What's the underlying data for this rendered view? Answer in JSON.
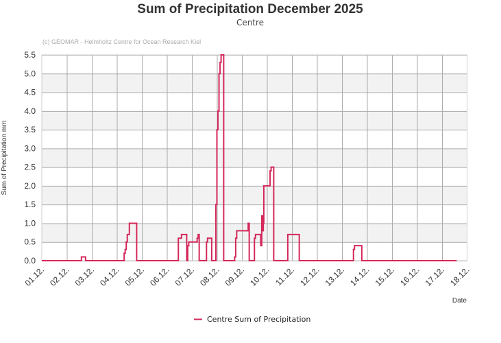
{
  "chart_data": {
    "type": "line",
    "step": true,
    "title": "Sum of Precipitation December 2025",
    "subtitle": "Centre",
    "credit": "(c) GEOMAR - Helmholtz Centre for Ocean Research Kiel",
    "xlabel": "Date",
    "ylabel": "Sum of Precipitation mm",
    "ylim": [
      0,
      5.5
    ],
    "yticks": [
      "0.0",
      "0.5",
      "1.0",
      "1.5",
      "2.0",
      "2.5",
      "3.0",
      "3.5",
      "4.0",
      "4.5",
      "5.0",
      "5.5"
    ],
    "xlim": [
      "2025-12-01 00:00",
      "2025-12-18 00:00"
    ],
    "xticks": [
      "01.12.",
      "02.12.",
      "03.12.",
      "04.12.",
      "05.12.",
      "06.12.",
      "07.12.",
      "08.12.",
      "09.12.",
      "10.12.",
      "11.12.",
      "12.12.",
      "13.12.",
      "14.12.",
      "15.12.",
      "16.12.",
      "17.12.",
      "18.12."
    ],
    "grid": true,
    "legend_position": "bottom",
    "series": [
      {
        "name": "Centre Sum of Precipitation",
        "color": "#d4285a",
        "points": [
          [
            "2025-12-01 00:00",
            0
          ],
          [
            "2025-12-02 14:00",
            0.1
          ],
          [
            "2025-12-02 18:00",
            0
          ],
          [
            "2025-12-04 07:00",
            0.2
          ],
          [
            "2025-12-04 08:00",
            0.3
          ],
          [
            "2025-12-04 09:00",
            0.5
          ],
          [
            "2025-12-04 10:00",
            0.7
          ],
          [
            "2025-12-04 12:00",
            1.0
          ],
          [
            "2025-12-04 19:00",
            0
          ],
          [
            "2025-12-06 11:00",
            0.6
          ],
          [
            "2025-12-06 14:00",
            0.7
          ],
          [
            "2025-12-06 19:00",
            0
          ],
          [
            "2025-12-06 20:00",
            0.4
          ],
          [
            "2025-12-06 21:00",
            0.5
          ],
          [
            "2025-12-07 05:00",
            0.6
          ],
          [
            "2025-12-07 06:00",
            0.7
          ],
          [
            "2025-12-07 07:00",
            0
          ],
          [
            "2025-12-07 14:00",
            0.5
          ],
          [
            "2025-12-07 15:00",
            0.6
          ],
          [
            "2025-12-07 19:00",
            0
          ],
          [
            "2025-12-07 23:00",
            1.5
          ],
          [
            "2025-12-08 00:00",
            3.5
          ],
          [
            "2025-12-08 01:00",
            4.0
          ],
          [
            "2025-12-08 02:00",
            5.0
          ],
          [
            "2025-12-08 03:00",
            5.3
          ],
          [
            "2025-12-08 04:00",
            5.5
          ],
          [
            "2025-12-08 06:30",
            0
          ],
          [
            "2025-12-08 17:00",
            0.1
          ],
          [
            "2025-12-08 18:00",
            0.6
          ],
          [
            "2025-12-08 19:00",
            0.8
          ],
          [
            "2025-12-09 06:00",
            1.0
          ],
          [
            "2025-12-09 07:00",
            0
          ],
          [
            "2025-12-09 12:00",
            0.6
          ],
          [
            "2025-12-09 13:00",
            0.7
          ],
          [
            "2025-12-09 18:00",
            0.4
          ],
          [
            "2025-12-09 19:00",
            1.2
          ],
          [
            "2025-12-09 20:00",
            0.8
          ],
          [
            "2025-12-09 20:30",
            1.0
          ],
          [
            "2025-12-09 21:00",
            2.0
          ],
          [
            "2025-12-10 03:00",
            2.4
          ],
          [
            "2025-12-10 04:00",
            2.5
          ],
          [
            "2025-12-10 06:30",
            0
          ],
          [
            "2025-12-10 20:00",
            0.7
          ],
          [
            "2025-12-11 07:00",
            0
          ],
          [
            "2025-12-13 11:00",
            0.3
          ],
          [
            "2025-12-13 12:00",
            0.4
          ],
          [
            "2025-12-13 19:00",
            0
          ],
          [
            "2025-12-17 14:00",
            0
          ]
        ]
      }
    ]
  }
}
